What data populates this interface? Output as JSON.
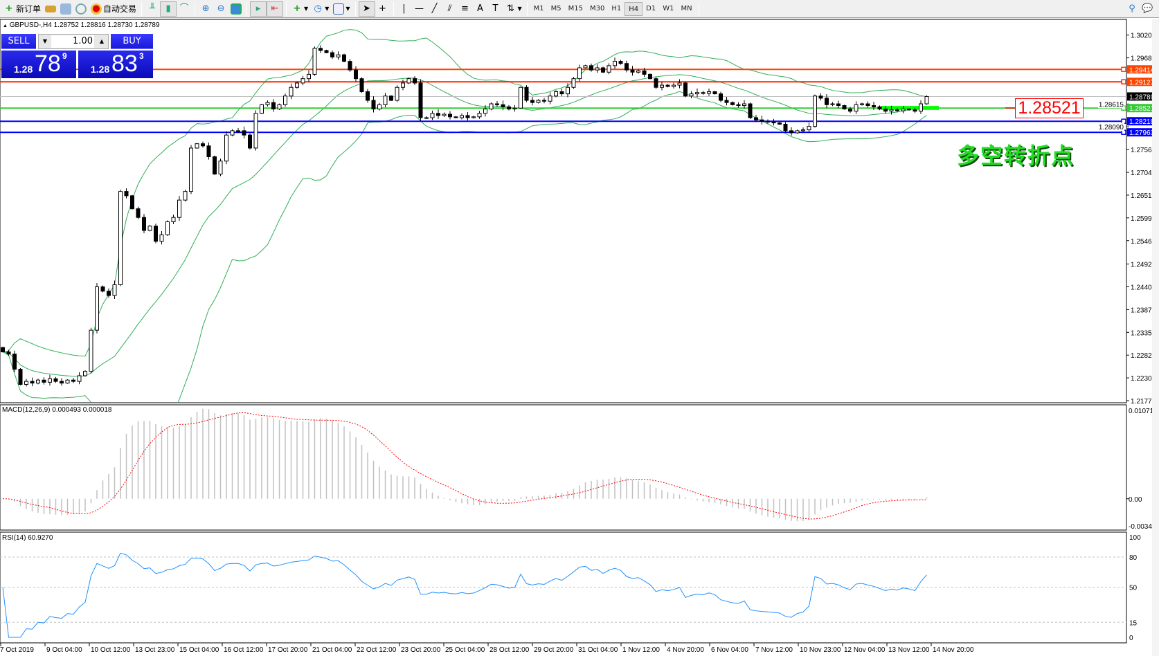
{
  "toolbar": {
    "new_order": "新订单",
    "auto_trading": "自动交易",
    "periods": [
      "M1",
      "M5",
      "M15",
      "M30",
      "H1",
      "H4",
      "D1",
      "W1",
      "MN"
    ],
    "active_period": "H4"
  },
  "chart": {
    "header": "GBPUSD-,H4  1.28752 1.28816 1.28730 1.28789"
  },
  "trade_panel": {
    "sell": "SELL",
    "buy": "BUY",
    "lot": "1.00",
    "sell_price": {
      "prefix": "1.28",
      "big": "78",
      "sup": "9"
    },
    "buy_price": {
      "prefix": "1.28",
      "big": "83",
      "sup": "3"
    },
    "color": "#1a1ad8"
  },
  "price_axis": {
    "ticks": [
      "1.30205",
      "1.29680",
      "1.28615",
      "1.28090",
      "1.27565",
      "1.27040",
      "1.26515",
      "1.25990",
      "1.25465",
      "1.24925",
      "1.24400",
      "1.23875",
      "1.23350",
      "1.22825",
      "1.22300",
      "1.21775"
    ]
  },
  "levels": [
    {
      "price": "1.29414",
      "color": "#ff4400",
      "tag": "#ff4400"
    },
    {
      "price": "1.29127",
      "color": "#ff2200",
      "tag": "#ff4400"
    },
    {
      "price": "1.28789",
      "color": "#c0c0c0",
      "tag": "#000000"
    },
    {
      "price": "1.28521",
      "color": "#33cc33",
      "tag": "#33cc33"
    },
    {
      "price": "1.28218",
      "color": "#0000ff",
      "tag": "#0000ff"
    },
    {
      "price": "1.27963",
      "color": "#0000ff",
      "tag": "#0000ff"
    }
  ],
  "annotation": {
    "price_label": "1.28521",
    "text": "多空转折点",
    "text_color": "#22dd22",
    "zone_color": "#00ff00"
  },
  "macd": {
    "label": "MACD(12,26,9) 0.000493 0.000018",
    "max": "0.010719",
    "zero": "0.00",
    "min": "-0.003492"
  },
  "rsi": {
    "label": "RSI(14) 60.9270",
    "ticks": [
      "100",
      "80",
      "50",
      "15",
      "0"
    ]
  },
  "time_axis": [
    "7 Oct 2019",
    "9 Oct 04:00",
    "10 Oct 12:00",
    "13 Oct 23:00",
    "15 Oct 04:00",
    "16 Oct 12:00",
    "17 Oct 20:00",
    "21 Oct 04:00",
    "22 Oct 12:00",
    "23 Oct 20:00",
    "25 Oct 04:00",
    "28 Oct 12:00",
    "29 Oct 20:00",
    "31 Oct 04:00",
    "1 Nov 12:00",
    "4 Nov 20:00",
    "6 Nov 04:00",
    "7 Nov 12:00",
    "10 Nov 23:00",
    "12 Nov 04:00",
    "13 Nov 12:00",
    "14 Nov 20:00"
  ],
  "chart_data": {
    "type": "candlestick",
    "symbol": "GBPUSD-",
    "timeframe": "H4",
    "ylim": [
      1.21775,
      1.30205
    ],
    "indicators": [
      "Bollinger Bands",
      "MACD(12,26,9)",
      "RSI(14)"
    ],
    "close": [
      1.229,
      1.2285,
      1.225,
      1.2215,
      1.2222,
      1.2218,
      1.2225,
      1.222,
      1.2228,
      1.2222,
      1.2218,
      1.2225,
      1.2222,
      1.2235,
      1.2245,
      1.234,
      1.244,
      1.243,
      1.242,
      1.2445,
      1.266,
      1.265,
      1.262,
      1.26,
      1.257,
      1.258,
      1.2545,
      1.256,
      1.259,
      1.26,
      1.264,
      1.266,
      1.276,
      1.277,
      1.2765,
      1.274,
      1.27,
      1.273,
      1.279,
      1.28,
      1.28,
      1.279,
      1.276,
      1.284,
      1.286,
      1.2865,
      1.285,
      1.286,
      1.288,
      1.29,
      1.291,
      1.292,
      1.293,
      1.299,
      1.2985,
      1.298,
      1.297,
      1.2975,
      1.296,
      1.294,
      1.292,
      1.289,
      1.287,
      1.285,
      1.286,
      1.288,
      1.287,
      1.29,
      1.291,
      1.292,
      1.291,
      1.283,
      1.283,
      1.284,
      1.2835,
      1.2838,
      1.2832,
      1.283,
      1.2835,
      1.283,
      1.2832,
      1.284,
      1.285,
      1.2862,
      1.286,
      1.2855,
      1.285,
      1.2852,
      1.29,
      1.287,
      1.2865,
      1.287,
      1.2868,
      1.288,
      1.289,
      1.2885,
      1.29,
      1.292,
      1.2945,
      1.295,
      1.294,
      1.2945,
      1.2935,
      1.295,
      1.296,
      1.2955,
      1.294,
      1.2935,
      1.2938,
      1.293,
      1.292,
      1.29,
      1.2905,
      1.2902,
      1.2905,
      1.291,
      1.288,
      1.2885,
      1.2888,
      1.2886,
      1.289,
      1.2885,
      1.287,
      1.2865,
      1.286,
      1.2858,
      1.2862,
      1.283,
      1.2825,
      1.2822,
      1.282,
      1.2818,
      1.2815,
      1.28,
      1.2795,
      1.28,
      1.2802,
      1.281,
      1.288,
      1.2875,
      1.286,
      1.2862,
      1.2858,
      1.285,
      1.2845,
      1.286,
      1.2862,
      1.2858,
      1.2855,
      1.285,
      1.2845,
      1.2848,
      1.2846,
      1.285,
      1.2848,
      1.2845,
      1.2862,
      1.28789
    ]
  }
}
